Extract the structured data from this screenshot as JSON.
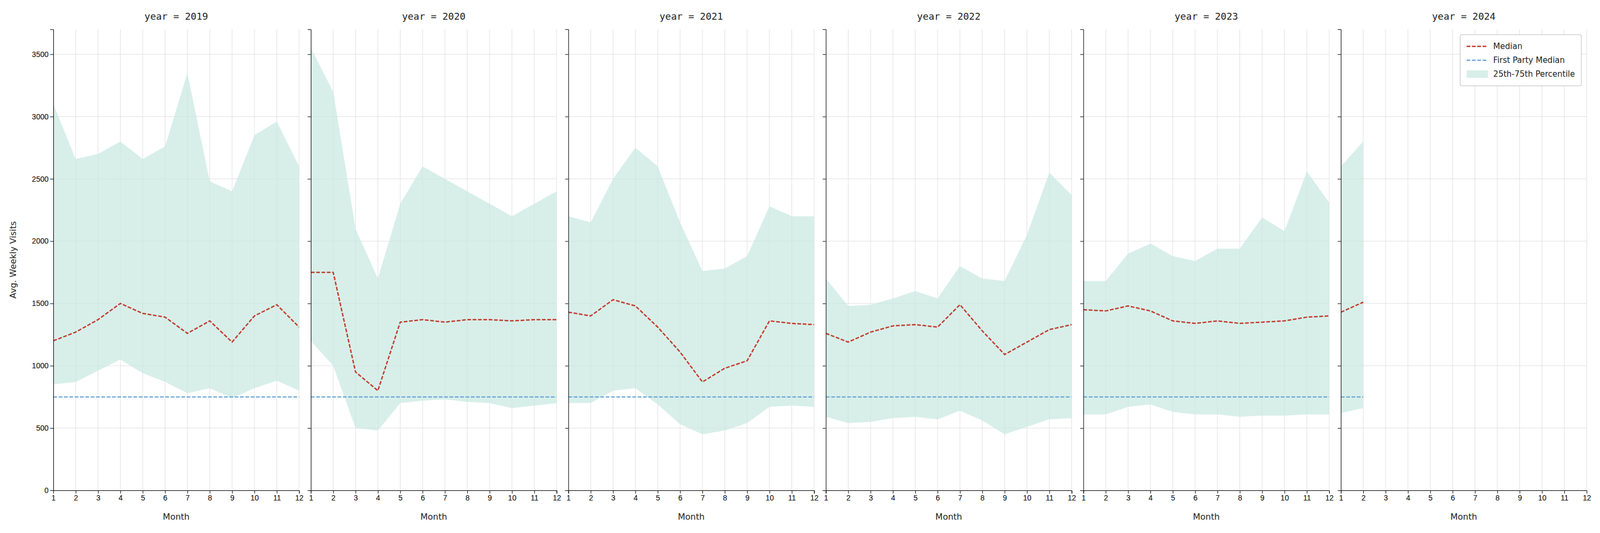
{
  "chart_data": [
    {
      "type": "line",
      "title": "year = 2019",
      "xlabel": "Month",
      "ylabel": "Avg. Weekly Visits",
      "x": [
        1,
        2,
        3,
        4,
        5,
        6,
        7,
        8,
        9,
        10,
        11,
        12
      ],
      "xlim": [
        1,
        12
      ],
      "xticks": [
        1,
        2,
        3,
        4,
        5,
        6,
        7,
        8,
        9,
        10,
        11,
        12
      ],
      "ylim": [
        0,
        3700
      ],
      "yticks": [
        0,
        500,
        1000,
        1500,
        2000,
        2500,
        3000,
        3500
      ],
      "grid": true,
      "series": [
        {
          "name": "Median",
          "color": "#c0392b",
          "line_style": "dashed",
          "values": [
            1200,
            1270,
            1370,
            1500,
            1420,
            1390,
            1260,
            1360,
            1190,
            1400,
            1490,
            1310
          ]
        },
        {
          "name": "First Party Median",
          "color": "#5b9bd5",
          "line_style": "dashed",
          "values": [
            750,
            750,
            750,
            750,
            750,
            750,
            750,
            750,
            750,
            750,
            750,
            750
          ]
        },
        {
          "name": "25th-75th Percentile",
          "type": "area",
          "color": "#c8e8e0",
          "lower": [
            850,
            870,
            960,
            1050,
            940,
            870,
            780,
            820,
            740,
            820,
            880,
            800
          ],
          "upper": [
            3100,
            2660,
            2700,
            2800,
            2660,
            2760,
            3350,
            2480,
            2400,
            2850,
            2960,
            2600
          ]
        }
      ]
    },
    {
      "type": "line",
      "title": "year = 2020",
      "xlabel": "Month",
      "x": [
        1,
        2,
        3,
        4,
        5,
        6,
        7,
        8,
        9,
        10,
        11,
        12
      ],
      "xlim": [
        1,
        12
      ],
      "xticks": [
        1,
        2,
        3,
        4,
        5,
        6,
        7,
        8,
        9,
        10,
        11,
        12
      ],
      "ylim": [
        0,
        3700
      ],
      "yticks": [
        0,
        500,
        1000,
        1500,
        2000,
        2500,
        3000,
        3500
      ],
      "grid": true,
      "tick_labels": "x",
      "series": [
        {
          "name": "Median",
          "color": "#c0392b",
          "line_style": "dashed",
          "values": [
            1750,
            1750,
            950,
            800,
            1350,
            1370,
            1350,
            1370,
            1370,
            1360,
            1370,
            1370
          ]
        },
        {
          "name": "First Party Median",
          "color": "#5b9bd5",
          "line_style": "dashed",
          "values": [
            750,
            750,
            750,
            750,
            750,
            750,
            750,
            750,
            750,
            750,
            750,
            750
          ]
        },
        {
          "name": "25th-75th Percentile",
          "type": "area",
          "color": "#c8e8e0",
          "lower": [
            1200,
            1000,
            500,
            480,
            700,
            720,
            730,
            710,
            700,
            660,
            680,
            700
          ],
          "upper": [
            3550,
            3200,
            2100,
            1700,
            2300,
            2600,
            2500,
            2400,
            2300,
            2200,
            2300,
            2400
          ]
        }
      ]
    },
    {
      "type": "line",
      "title": "year = 2021",
      "xlabel": "Month",
      "x": [
        1,
        2,
        3,
        4,
        5,
        6,
        7,
        8,
        9,
        10,
        11,
        12
      ],
      "xlim": [
        1,
        12
      ],
      "xticks": [
        1,
        2,
        3,
        4,
        5,
        6,
        7,
        8,
        9,
        10,
        11,
        12
      ],
      "ylim": [
        0,
        3700
      ],
      "yticks": [
        0,
        500,
        1000,
        1500,
        2000,
        2500,
        3000,
        3500
      ],
      "grid": true,
      "tick_labels": "x",
      "series": [
        {
          "name": "Median",
          "color": "#c0392b",
          "line_style": "dashed",
          "values": [
            1430,
            1400,
            1530,
            1480,
            1310,
            1110,
            870,
            980,
            1040,
            1360,
            1340,
            1330
          ]
        },
        {
          "name": "First Party Median",
          "color": "#5b9bd5",
          "line_style": "dashed",
          "values": [
            750,
            750,
            750,
            750,
            750,
            750,
            750,
            750,
            750,
            750,
            750,
            750
          ]
        },
        {
          "name": "25th-75th Percentile",
          "type": "area",
          "color": "#c8e8e0",
          "lower": [
            700,
            700,
            800,
            820,
            690,
            530,
            450,
            480,
            540,
            670,
            680,
            670
          ],
          "upper": [
            2200,
            2150,
            2500,
            2750,
            2600,
            2150,
            1760,
            1780,
            1880,
            2280,
            2200,
            2200
          ]
        }
      ]
    },
    {
      "type": "line",
      "title": "year = 2022",
      "xlabel": "Month",
      "x": [
        1,
        2,
        3,
        4,
        5,
        6,
        7,
        8,
        9,
        10,
        11,
        12
      ],
      "xlim": [
        1,
        12
      ],
      "xticks": [
        1,
        2,
        3,
        4,
        5,
        6,
        7,
        8,
        9,
        10,
        11,
        12
      ],
      "ylim": [
        0,
        3700
      ],
      "yticks": [
        0,
        500,
        1000,
        1500,
        2000,
        2500,
        3000,
        3500
      ],
      "grid": true,
      "tick_labels": "x",
      "series": [
        {
          "name": "Median",
          "color": "#c0392b",
          "line_style": "dashed",
          "values": [
            1260,
            1190,
            1270,
            1320,
            1330,
            1310,
            1490,
            1280,
            1090,
            1190,
            1290,
            1330
          ]
        },
        {
          "name": "First Party Median",
          "color": "#5b9bd5",
          "line_style": "dashed",
          "values": [
            750,
            750,
            750,
            750,
            750,
            750,
            750,
            750,
            750,
            750,
            750,
            750
          ]
        },
        {
          "name": "25th-75th Percentile",
          "type": "area",
          "color": "#c8e8e0",
          "lower": [
            590,
            540,
            550,
            580,
            590,
            570,
            640,
            560,
            450,
            510,
            570,
            580
          ],
          "upper": [
            1700,
            1480,
            1490,
            1540,
            1600,
            1540,
            1800,
            1700,
            1680,
            2050,
            2550,
            2370
          ]
        }
      ]
    },
    {
      "type": "line",
      "title": "year = 2023",
      "xlabel": "Month",
      "x": [
        1,
        2,
        3,
        4,
        5,
        6,
        7,
        8,
        9,
        10,
        11,
        12
      ],
      "xlim": [
        1,
        12
      ],
      "xticks": [
        1,
        2,
        3,
        4,
        5,
        6,
        7,
        8,
        9,
        10,
        11,
        12
      ],
      "ylim": [
        0,
        3700
      ],
      "yticks": [
        0,
        500,
        1000,
        1500,
        2000,
        2500,
        3000,
        3500
      ],
      "grid": true,
      "tick_labels": "x",
      "series": [
        {
          "name": "Median",
          "color": "#c0392b",
          "line_style": "dashed",
          "values": [
            1450,
            1440,
            1480,
            1440,
            1360,
            1340,
            1360,
            1340,
            1350,
            1360,
            1390,
            1400
          ]
        },
        {
          "name": "First Party Median",
          "color": "#5b9bd5",
          "line_style": "dashed",
          "values": [
            750,
            750,
            750,
            750,
            750,
            750,
            750,
            750,
            750,
            750,
            750,
            750
          ]
        },
        {
          "name": "25th-75th Percentile",
          "type": "area",
          "color": "#c8e8e0",
          "lower": [
            610,
            610,
            670,
            690,
            630,
            610,
            610,
            590,
            600,
            600,
            610,
            610
          ],
          "upper": [
            1680,
            1680,
            1900,
            1980,
            1880,
            1840,
            1940,
            1940,
            2190,
            2080,
            2560,
            2310
          ]
        }
      ]
    },
    {
      "type": "line",
      "title": "year = 2024",
      "xlabel": "Month",
      "x": [
        1,
        2,
        3,
        4,
        5,
        6,
        7,
        8,
        9,
        10,
        11,
        12
      ],
      "xlim": [
        1,
        12
      ],
      "xticks": [
        1,
        2,
        3,
        4,
        5,
        6,
        7,
        8,
        9,
        10,
        11,
        12
      ],
      "ylim": [
        0,
        3700
      ],
      "yticks": [
        0,
        500,
        1000,
        1500,
        2000,
        2500,
        3000,
        3500
      ],
      "grid": true,
      "tick_labels": "x",
      "legend": "upper right",
      "series": [
        {
          "name": "Median",
          "color": "#c0392b",
          "line_style": "dashed",
          "values": [
            1430,
            1510,
            null,
            null,
            null,
            null,
            null,
            null,
            null,
            null,
            null,
            null
          ]
        },
        {
          "name": "First Party Median",
          "color": "#5b9bd5",
          "line_style": "dashed",
          "values": [
            750,
            750,
            null,
            null,
            null,
            null,
            null,
            null,
            null,
            null,
            null,
            null
          ]
        },
        {
          "name": "25th-75th Percentile",
          "type": "area",
          "color": "#c8e8e0",
          "lower": [
            620,
            660,
            null,
            null,
            null,
            null,
            null,
            null,
            null,
            null,
            null,
            null
          ],
          "upper": [
            2600,
            2800,
            null,
            null,
            null,
            null,
            null,
            null,
            null,
            null,
            null,
            null
          ]
        }
      ]
    }
  ]
}
